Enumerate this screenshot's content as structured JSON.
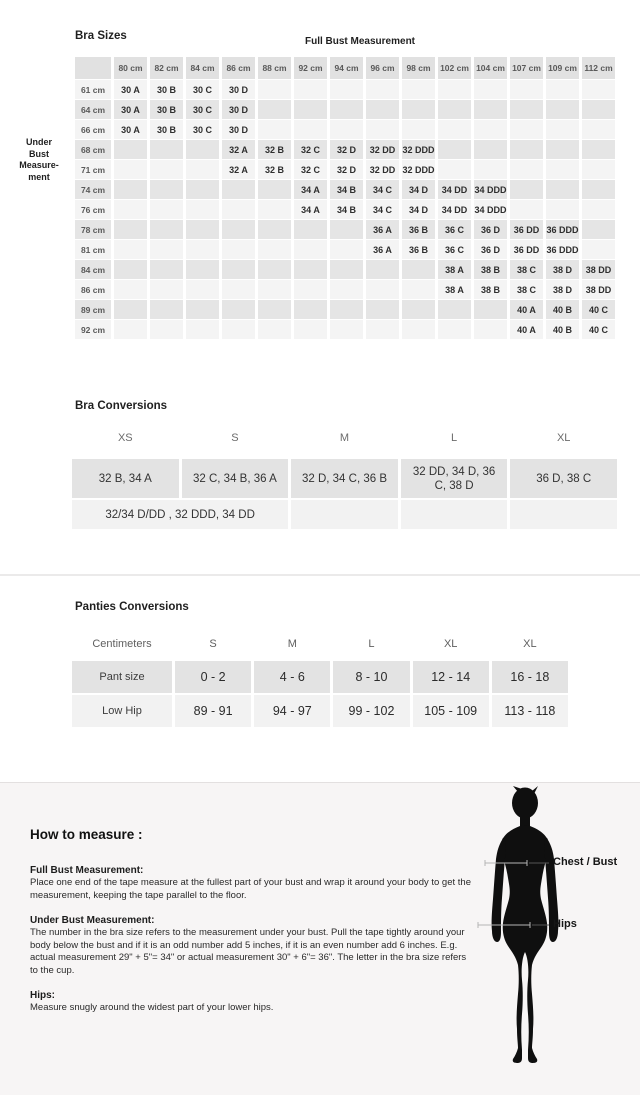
{
  "bra_sizes": {
    "title": "Bra Sizes",
    "column_group_label": "Full Bust Measurement",
    "row_group_label_lines": [
      "Under",
      "Bust",
      "Measure-",
      "ment"
    ],
    "columns": [
      "80 cm",
      "82 cm",
      "84 cm",
      "86 cm",
      "88 cm",
      "92 cm",
      "94 cm",
      "96 cm",
      "98 cm",
      "102 cm",
      "104 cm",
      "107 cm",
      "109 cm",
      "112 cm"
    ],
    "rows": [
      {
        "label": "61 cm",
        "cells": [
          "30 A",
          "30 B",
          "30 C",
          "30 D",
          "",
          "",
          "",
          "",
          "",
          "",
          "",
          "",
          "",
          ""
        ]
      },
      {
        "label": "64 cm",
        "cells": [
          "30 A",
          "30 B",
          "30 C",
          "30 D",
          "",
          "",
          "",
          "",
          "",
          "",
          "",
          "",
          "",
          ""
        ]
      },
      {
        "label": "66 cm",
        "cells": [
          "30 A",
          "30 B",
          "30 C",
          "30 D",
          "",
          "",
          "",
          "",
          "",
          "",
          "",
          "",
          "",
          ""
        ]
      },
      {
        "label": "68 cm",
        "cells": [
          "",
          "",
          "",
          "32 A",
          "32 B",
          "32 C",
          "32 D",
          "32 DD",
          "32 DDD",
          "",
          "",
          "",
          "",
          ""
        ]
      },
      {
        "label": "71 cm",
        "cells": [
          "",
          "",
          "",
          "32 A",
          "32 B",
          "32 C",
          "32 D",
          "32 DD",
          "32 DDD",
          "",
          "",
          "",
          "",
          ""
        ]
      },
      {
        "label": "74 cm",
        "cells": [
          "",
          "",
          "",
          "",
          "",
          "34 A",
          "34 B",
          "34 C",
          "34 D",
          "34 DD",
          "34 DDD",
          "",
          "",
          ""
        ]
      },
      {
        "label": "76 cm",
        "cells": [
          "",
          "",
          "",
          "",
          "",
          "34 A",
          "34 B",
          "34 C",
          "34 D",
          "34 DD",
          "34 DDD",
          "",
          "",
          ""
        ]
      },
      {
        "label": "78 cm",
        "cells": [
          "",
          "",
          "",
          "",
          "",
          "",
          "",
          "36 A",
          "36 B",
          "36 C",
          "36 D",
          "36 DD",
          "36 DDD",
          ""
        ]
      },
      {
        "label": "81 cm",
        "cells": [
          "",
          "",
          "",
          "",
          "",
          "",
          "",
          "36 A",
          "36 B",
          "36 C",
          "36 D",
          "36 DD",
          "36 DDD",
          ""
        ]
      },
      {
        "label": "84 cm",
        "cells": [
          "",
          "",
          "",
          "",
          "",
          "",
          "",
          "",
          "",
          "38 A",
          "38 B",
          "38 C",
          "38 D",
          "38 DD"
        ]
      },
      {
        "label": "86 cm",
        "cells": [
          "",
          "",
          "",
          "",
          "",
          "",
          "",
          "",
          "",
          "38 A",
          "38 B",
          "38 C",
          "38 D",
          "38 DD"
        ]
      },
      {
        "label": "89 cm",
        "cells": [
          "",
          "",
          "",
          "",
          "",
          "",
          "",
          "",
          "",
          "",
          "",
          "40 A",
          "40 B",
          "40 C"
        ]
      },
      {
        "label": "92 cm",
        "cells": [
          "",
          "",
          "",
          "",
          "",
          "",
          "",
          "",
          "",
          "",
          "",
          "40 A",
          "40 B",
          "40 C"
        ]
      }
    ]
  },
  "bra_conversions": {
    "title": "Bra Conversions",
    "headers": [
      "XS",
      "S",
      "M",
      "L",
      "XL"
    ],
    "row1": [
      "32 B, 34 A",
      "32 C, 34 B, 36 A",
      "32 D, 34 C, 36 B",
      "32 DD, 34 D, 36 C, 38 D",
      "36 D, 38 C"
    ],
    "row2_merged": "32/34 D/DD , 32 DDD, 34 DD",
    "row2_empty_count": 3
  },
  "panties_conversions": {
    "title": "Panties Conversions",
    "headers": [
      "Centimeters",
      "S",
      "M",
      "L",
      "XL",
      "XL"
    ],
    "rows": [
      {
        "label": "Pant size",
        "values": [
          "0 - 2",
          "4 - 6",
          "8 - 10",
          "12 - 14",
          "16 - 18"
        ]
      },
      {
        "label": "Low Hip",
        "values": [
          "89 - 91",
          "94 - 97",
          "99 - 102",
          "105 - 109",
          "113 - 118"
        ]
      }
    ]
  },
  "how_to_measure": {
    "title": "How to measure :",
    "sections": [
      {
        "heading": "Full Bust Measurement:",
        "body": "Place one end of the tape measure at the fullest part of your bust and wrap it around your body to get the measurement, keeping the tape parallel to the floor."
      },
      {
        "heading": "Under Bust Measurement:",
        "body": "The number in the bra size refers to the measurement under your bust. Pull the tape tightly around your body below the bust and if it is an odd number add 5 inches, if it is an even number add 6 inches. E.g. actual measurement 29\" + 5\"= 34\" or actual measurement 30\" + 6\"= 36\". The letter in the bra size refers to the cup."
      },
      {
        "heading": "Hips:",
        "body": "Measure snugly around the widest part of your lower hips."
      }
    ],
    "figure_labels": {
      "chest": "Chest / Bust",
      "hips": "Hips"
    }
  },
  "colors": {
    "table_header_bg": "#e1e1e1",
    "row_dark": "#e5e5e5",
    "row_light": "#f4f4f4",
    "conv_row1_bg": "#e3e3e3",
    "conv_row2_bg": "#f2f2f2",
    "section_bg": "#f7f5f5",
    "silhouette": "#0f0f0f"
  }
}
